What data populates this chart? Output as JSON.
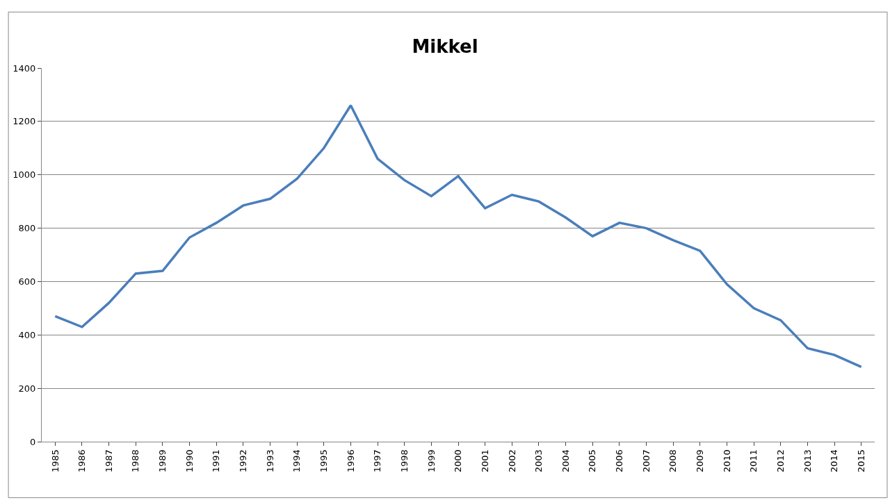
{
  "chart_data": {
    "type": "line",
    "title": "Mikkel",
    "categories": [
      "1985",
      "1986",
      "1987",
      "1988",
      "1989",
      "1990",
      "1991",
      "1992",
      "1993",
      "1994",
      "1995",
      "1996",
      "1997",
      "1998",
      "1999",
      "2000",
      "2001",
      "2002",
      "2003",
      "2004",
      "2005",
      "2006",
      "2007",
      "2008",
      "2009",
      "2010",
      "2011",
      "2012",
      "2013",
      "2014",
      "2015"
    ],
    "series": [
      {
        "color": "#4a7ebb",
        "values": [
          470,
          430,
          520,
          630,
          640,
          765,
          820,
          885,
          910,
          985,
          1100,
          1260,
          1060,
          980,
          920,
          995,
          875,
          925,
          900,
          840,
          770,
          820,
          800,
          755,
          715,
          590,
          500,
          455,
          350,
          325,
          280
        ]
      }
    ],
    "ylim": [
      0,
      1400
    ],
    "yticks": [
      0,
      200,
      400,
      600,
      800,
      1000,
      1200,
      1400
    ],
    "grid": "y",
    "legend": false,
    "marker": "none",
    "line_style": "solid"
  }
}
